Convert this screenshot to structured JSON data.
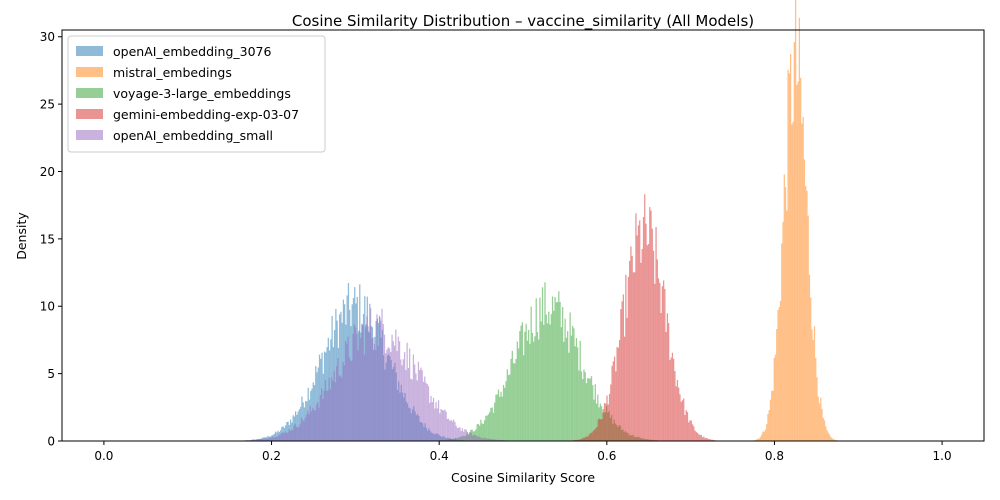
{
  "chart_data": {
    "type": "histogram",
    "title": "Cosine Similarity Distribution – vaccine_similarity (All Models)",
    "xlabel": "Cosine Similarity Score",
    "ylabel": "Density",
    "xlim": [
      -0.05,
      1.05
    ],
    "ylim": [
      0,
      30.5
    ],
    "xticks": [
      "0.0",
      "0.2",
      "0.4",
      "0.6",
      "0.8",
      "1.0"
    ],
    "yticks": [
      "0",
      "5",
      "10",
      "15",
      "20",
      "25",
      "30"
    ],
    "grid": false,
    "legend_position": "top-left",
    "series": [
      {
        "name": "openAI_embedding_3076",
        "color": "#1f77b4",
        "opacity": 0.5,
        "mean": 0.3,
        "std": 0.04,
        "peak_density": 10.0,
        "range": [
          0.15,
          0.5
        ]
      },
      {
        "name": "mistral_embedings",
        "color": "#ff7f0e",
        "opacity": 0.5,
        "mean": 0.825,
        "std": 0.014,
        "peak_density": 28.0,
        "range": [
          0.73,
          0.92
        ]
      },
      {
        "name": "voyage-3-large_embeddings",
        "color": "#2ca02c",
        "opacity": 0.5,
        "mean": 0.53,
        "std": 0.04,
        "peak_density": 10.0,
        "range": [
          0.38,
          0.66
        ]
      },
      {
        "name": "gemini-embedding-exp-03-07",
        "color": "#d62728",
        "opacity": 0.5,
        "mean": 0.645,
        "std": 0.025,
        "peak_density": 15.5,
        "range": [
          0.55,
          0.8
        ]
      },
      {
        "name": "openAI_embedding_small",
        "color": "#9467bd",
        "opacity": 0.5,
        "mean": 0.325,
        "std": 0.048,
        "peak_density": 8.5,
        "range": [
          0.1,
          0.52
        ]
      }
    ]
  }
}
